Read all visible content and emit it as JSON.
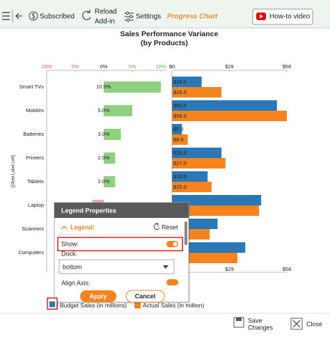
{
  "toolbar": {
    "subscribed": "Subscribed",
    "reload": [
      "Reload",
      "Add-in"
    ],
    "settings": "Settings",
    "progress_chart": "Progress Chart",
    "how_to": "How-to video"
  },
  "chart_data": {
    "type": "bar",
    "title": "Sales Performance Variance",
    "subtitle": "(by Products)",
    "y_axis_label": "[Chart Label Left]",
    "categories": [
      "Smart TVs",
      "Mobiles",
      "Batteries",
      "Printers",
      "Tablets",
      "Laptop",
      "Scanners",
      "Computers"
    ],
    "variance": {
      "values": [
        10,
        5,
        3,
        2,
        2,
        -2,
        null,
        null
      ],
      "value_labels": [
        "10.0%",
        "5.0%",
        "3.0%",
        "2.0%",
        "2.0%",
        null,
        null,
        null
      ],
      "positive_color": "#8fd17f",
      "negative_color": "#f4a3a3",
      "xlim": [
        -10,
        10
      ],
      "xticks": [
        {
          "value": -10,
          "label": "10%"
        },
        {
          "value": -5,
          "label": "5%"
        },
        {
          "value": 0,
          "label": "0%"
        },
        {
          "value": 5,
          "label": "5%"
        },
        {
          "value": 10,
          "label": "10%"
        }
      ]
    },
    "series": [
      {
        "name": "Budget Sales (in millions)",
        "color": "#2a78b8",
        "values": [
          15,
          53,
          5,
          25,
          18,
          45,
          23,
          37
        ],
        "value_labels": [
          "$15.0",
          "$53.0",
          "$5.0",
          "$25.0",
          "$18.0",
          null,
          null,
          null
        ]
      },
      {
        "name": "Actual Sales (in million)",
        "color": "#f5841f",
        "values": [
          25,
          58,
          8,
          27,
          20,
          44,
          19,
          33
        ],
        "value_labels": [
          "$25.0",
          "$58.0",
          "$8.0",
          "$27.0",
          "$20.0",
          null,
          null,
          null
        ]
      }
    ],
    "xlim": [
      0,
      58
    ],
    "xticks": [
      {
        "value": 0,
        "label": "$0"
      },
      {
        "value": 29,
        "label": "$29"
      },
      {
        "value": 58,
        "label": "$58"
      }
    ],
    "legend": "bottom"
  },
  "popup": {
    "title": "Legend Properties",
    "section": "Legend:",
    "reset": "Reset",
    "show": "Show:",
    "dock": "Dock:",
    "dock_value": "bottom",
    "align_axis": "Align Axis:",
    "apply": "Apply",
    "cancel": "Cancel"
  },
  "footer": {
    "save": [
      "Save",
      "Changes"
    ],
    "close": "Close"
  }
}
